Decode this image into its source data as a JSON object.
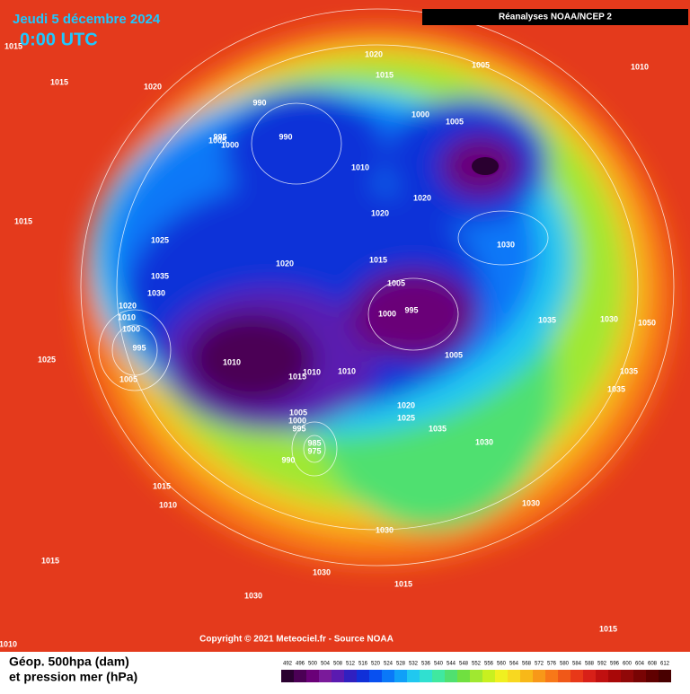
{
  "header": {
    "title": "Jeudi 5 décembre 2024",
    "time": "0:00 UTC",
    "source": "Réanalyses NOAA/NCEP 2"
  },
  "isobar_labels": [
    1015,
    1015,
    1020,
    1020,
    1015,
    1005,
    1010,
    990,
    1000,
    1005,
    995,
    1005,
    1000,
    990,
    1010,
    1020,
    1020,
    1030,
    1015,
    1025,
    1015,
    1020,
    1035,
    1030,
    1005,
    1020,
    1010,
    1000,
    995,
    1000,
    995,
    1035,
    1030,
    1050,
    1025,
    1010,
    1005,
    1005,
    1010,
    1010,
    1015,
    1035,
    1035,
    1020,
    1025,
    1035,
    1005,
    1000,
    995,
    1030,
    985,
    975,
    990,
    1015,
    1010,
    1030,
    1030,
    1015,
    1030,
    1015,
    1030,
    1015,
    1010
  ],
  "footer": {
    "copyright": "Copyright © 2021 Meteociel.fr - Source NOAA",
    "legend_title": [
      "Géop. 500hpa (dam)",
      "et pression mer (hPa)"
    ]
  },
  "legend": {
    "levels": [
      492,
      496,
      500,
      504,
      508,
      512,
      516,
      520,
      524,
      528,
      532,
      536,
      540,
      544,
      548,
      552,
      556,
      560,
      564,
      568,
      572,
      576,
      580,
      584,
      588,
      592,
      596,
      600,
      604,
      608,
      612
    ],
    "colors": [
      "#2a0030",
      "#4b0055",
      "#6a0078",
      "#7a1a9a",
      "#5a1ab0",
      "#3020c0",
      "#1030d8",
      "#0850f0",
      "#0a78f8",
      "#10a0f8",
      "#20c8f0",
      "#30e0d0",
      "#40e8a0",
      "#50e070",
      "#70e040",
      "#a0e830",
      "#c8f020",
      "#f0f020",
      "#f8d820",
      "#f8b818",
      "#f89818",
      "#f87818",
      "#f05818",
      "#e83818",
      "#d82018",
      "#c01010",
      "#a80808",
      "#900808",
      "#780404",
      "#600000",
      "#480000"
    ]
  }
}
